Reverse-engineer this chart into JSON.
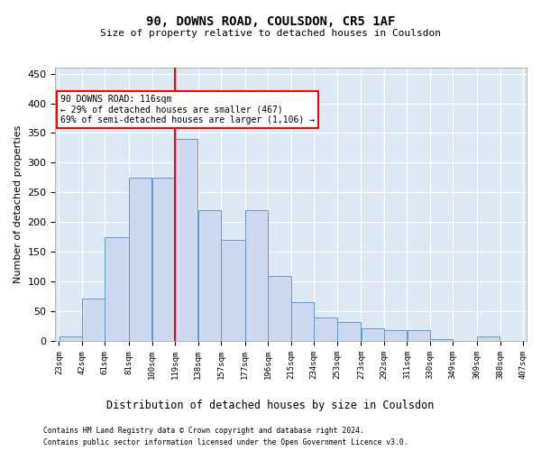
{
  "title": "90, DOWNS ROAD, COULSDON, CR5 1AF",
  "subtitle": "Size of property relative to detached houses in Coulsdon",
  "xlabel": "Distribution of detached houses by size in Coulsdon",
  "ylabel": "Number of detached properties",
  "bar_color": "#ccd9f0",
  "bar_edge_color": "#6699cc",
  "background_color": "#dde8f5",
  "grid_color": "#ffffff",
  "vline_x": 119,
  "vline_color": "red",
  "bin_edges": [
    23,
    42,
    61,
    81,
    100,
    119,
    138,
    157,
    177,
    196,
    215,
    234,
    253,
    273,
    292,
    311,
    330,
    349,
    369,
    388,
    407
  ],
  "bar_heights": [
    8,
    72,
    175,
    275,
    275,
    340,
    220,
    170,
    220,
    110,
    65,
    40,
    32,
    22,
    18,
    18,
    3,
    0,
    8,
    0
  ],
  "ylim": [
    0,
    460
  ],
  "yticks": [
    0,
    50,
    100,
    150,
    200,
    250,
    300,
    350,
    400,
    450
  ],
  "annotation_text": "90 DOWNS ROAD: 116sqm\n← 29% of detached houses are smaller (467)\n69% of semi-detached houses are larger (1,106) →",
  "footer_line1": "Contains HM Land Registry data © Crown copyright and database right 2024.",
  "footer_line2": "Contains public sector information licensed under the Open Government Licence v3.0.",
  "fig_bg": "#ffffff"
}
